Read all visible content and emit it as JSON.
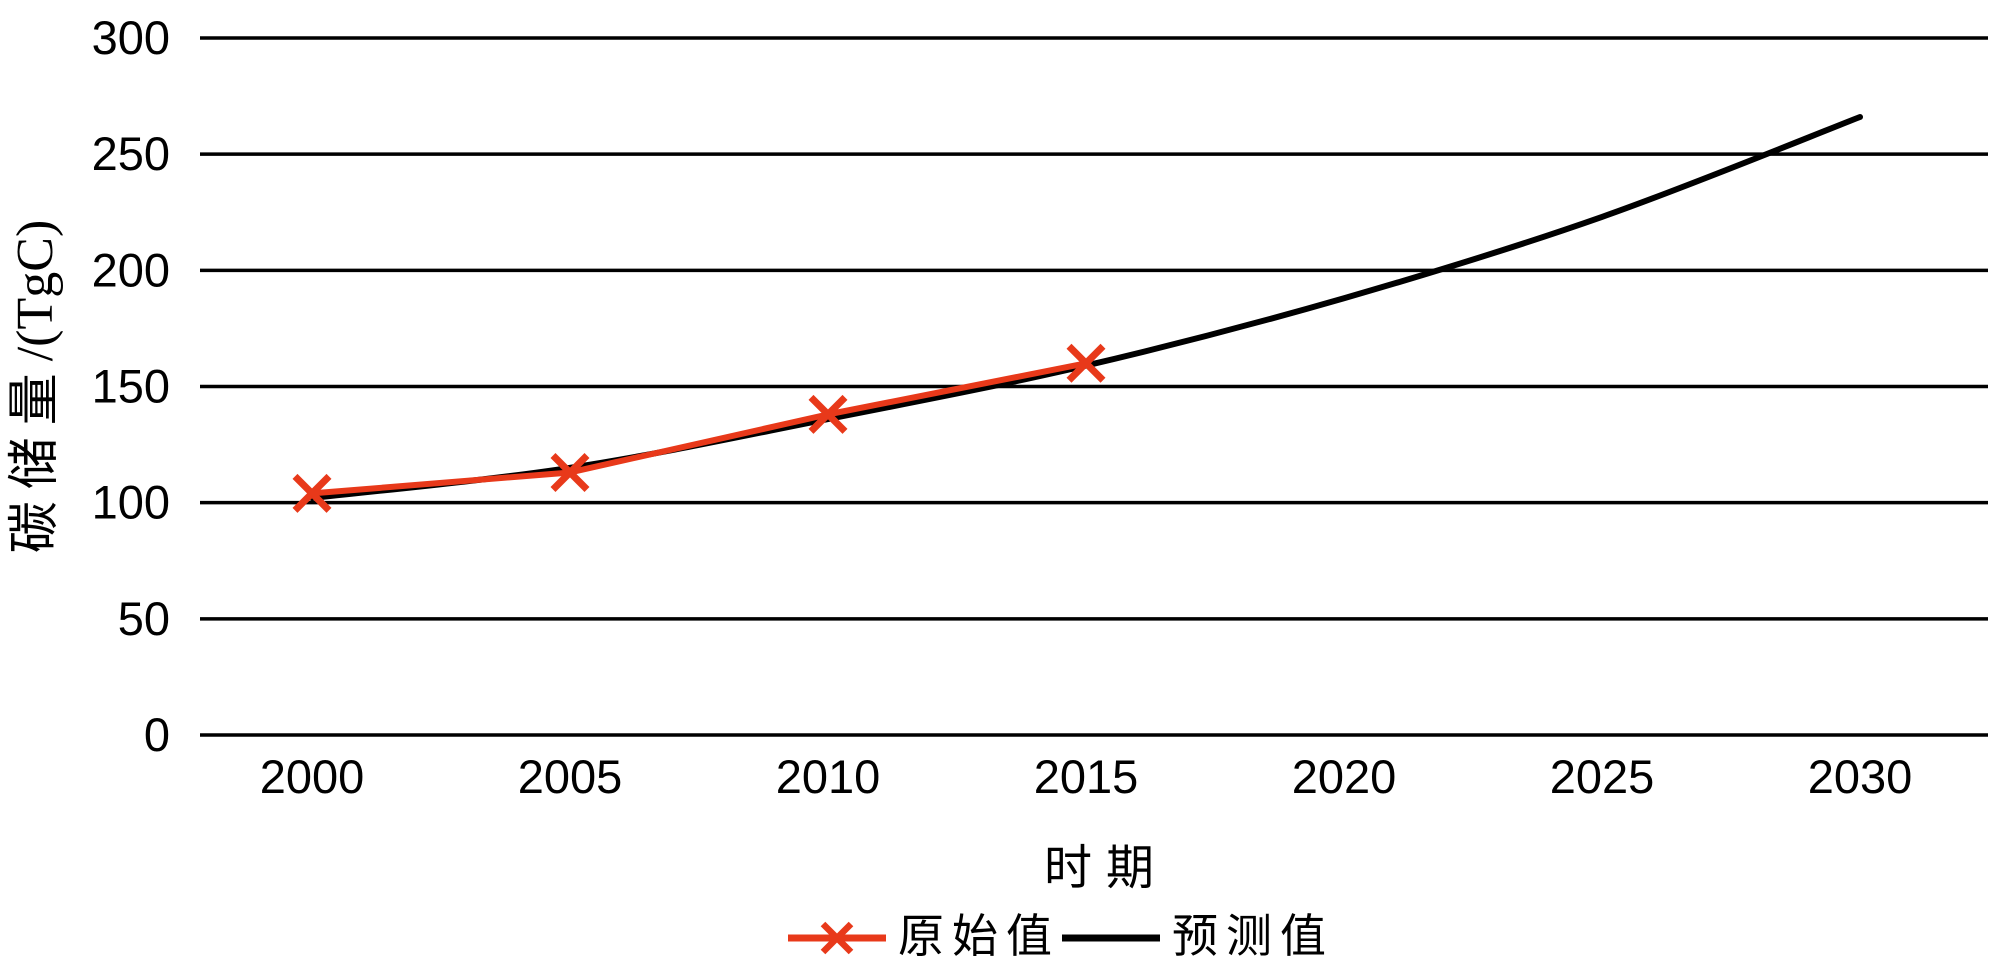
{
  "chart_data": {
    "type": "line",
    "title": "",
    "xlabel": "时期",
    "ylabel": "碳储量/(TgC)",
    "x": [
      2000,
      2005,
      2010,
      2015,
      2020,
      2025,
      2030
    ],
    "xlim": [
      2000,
      2030
    ],
    "ylim": [
      0,
      300
    ],
    "yticks": [
      0,
      50,
      100,
      150,
      200,
      250,
      300
    ],
    "grid": "horizontal",
    "grid_color": "#000000",
    "legend_position": "bottom",
    "series": [
      {
        "name": "预测值",
        "style": "smooth-line",
        "marker": "none",
        "color": "#000000",
        "x": [
          2000,
          2005,
          2010,
          2015,
          2020,
          2025,
          2030
        ],
        "values": [
          102,
          115,
          136,
          159,
          188,
          223,
          266
        ]
      },
      {
        "name": "原始值",
        "style": "line",
        "marker": "x",
        "color": "#e8391a",
        "x": [
          2000,
          2005,
          2010,
          2015
        ],
        "values": [
          104,
          113,
          138,
          160
        ]
      }
    ]
  },
  "colors": {
    "background": "#ffffff",
    "text": "#000000",
    "predicted": "#000000",
    "original": "#e8391a"
  }
}
